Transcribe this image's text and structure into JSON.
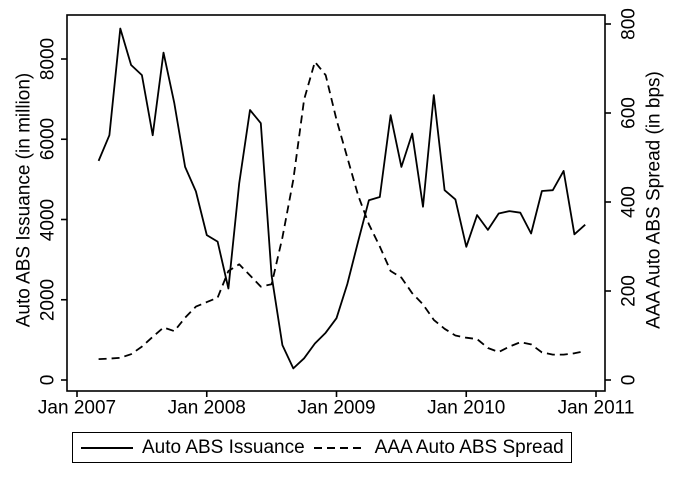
{
  "figure": {
    "background_color": "#ffffff",
    "line_color": "#000000",
    "left_axis_title": "Auto ABS Issuance (in million)",
    "right_axis_title": "AAA Auto ABS Spread (in bps)",
    "left_tick_labels": [
      "0",
      "2000",
      "4000",
      "6000",
      "8000"
    ],
    "right_tick_labels": [
      "0",
      "200",
      "400",
      "600",
      "800"
    ],
    "x_tick_labels": [
      "Jan 2007",
      "Jan 2008",
      "Jan 2009",
      "Jan 2010",
      "Jan 2011"
    ],
    "legend": {
      "position": "bottom",
      "items": [
        {
          "label": "Auto ABS Issuance",
          "line_style": "solid"
        },
        {
          "label": "AAA Auto ABS Spread",
          "line_style": "dashed"
        }
      ]
    }
  },
  "chart_data": {
    "type": "line",
    "title": "",
    "xlabel": "",
    "grid": false,
    "x": [
      "Mar 2007",
      "Apr 2007",
      "May 2007",
      "Jun 2007",
      "Jul 2007",
      "Aug 2007",
      "Sep 2007",
      "Oct 2007",
      "Nov 2007",
      "Dec 2007",
      "Jan 2008",
      "Feb 2008",
      "Mar 2008",
      "Apr 2008",
      "May 2008",
      "Jun 2008",
      "Jul 2008",
      "Aug 2008",
      "Sep 2008",
      "Oct 2008",
      "Nov 2008",
      "Dec 2008",
      "Jan 2009",
      "Feb 2009",
      "Mar 2009",
      "Apr 2009",
      "May 2009",
      "Jun 2009",
      "Jul 2009",
      "Aug 2009",
      "Sep 2009",
      "Oct 2009",
      "Nov 2009",
      "Dec 2009",
      "Jan 2010",
      "Feb 2010",
      "Mar 2010",
      "Apr 2010",
      "May 2010",
      "Jun 2010",
      "Jul 2010",
      "Aug 2010",
      "Sep 2010",
      "Oct 2010",
      "Nov 2010",
      "Dec 2010"
    ],
    "series": [
      {
        "name": "Auto ABS Issuance",
        "axis": "left",
        "line_style": "solid",
        "color": "#000000",
        "units": "million",
        "values": [
          5460,
          6100,
          8760,
          7850,
          7600,
          6100,
          8160,
          6900,
          5310,
          4700,
          3610,
          3450,
          2280,
          4900,
          6730,
          6400,
          2600,
          870,
          290,
          540,
          910,
          1180,
          1540,
          2390,
          3450,
          4480,
          4560,
          6600,
          5310,
          6140,
          4320,
          7100,
          4730,
          4500,
          3320,
          4110,
          3740,
          4150,
          4210,
          4170,
          3650,
          4710,
          4730,
          5210,
          3630,
          3870
        ]
      },
      {
        "name": "AAA Auto ABS Spread",
        "axis": "right",
        "line_style": "dashed",
        "color": "#000000",
        "units": "bps",
        "values": [
          47,
          48,
          50,
          58,
          75,
          97,
          118,
          110,
          140,
          165,
          175,
          185,
          245,
          260,
          235,
          210,
          215,
          320,
          450,
          630,
          715,
          685,
          585,
          500,
          415,
          350,
          300,
          245,
          230,
          195,
          170,
          135,
          115,
          100,
          95,
          92,
          72,
          63,
          75,
          85,
          80,
          62,
          57,
          57,
          60,
          65
        ]
      }
    ],
    "left_axis": {
      "label": "Auto ABS Issuance (in million)",
      "ticks": [
        0,
        2000,
        4000,
        6000,
        8000
      ],
      "range": [
        0,
        9100
      ]
    },
    "right_axis": {
      "label": "AAA Auto ABS Spread (in bps)",
      "ticks": [
        0,
        200,
        400,
        600,
        800
      ],
      "range": [
        0,
        820
      ]
    },
    "x_axis": {
      "tick_labels": [
        "Jan 2007",
        "Jan 2008",
        "Jan 2009",
        "Jan 2010",
        "Jan 2011"
      ]
    },
    "legend_position": "bottom"
  }
}
